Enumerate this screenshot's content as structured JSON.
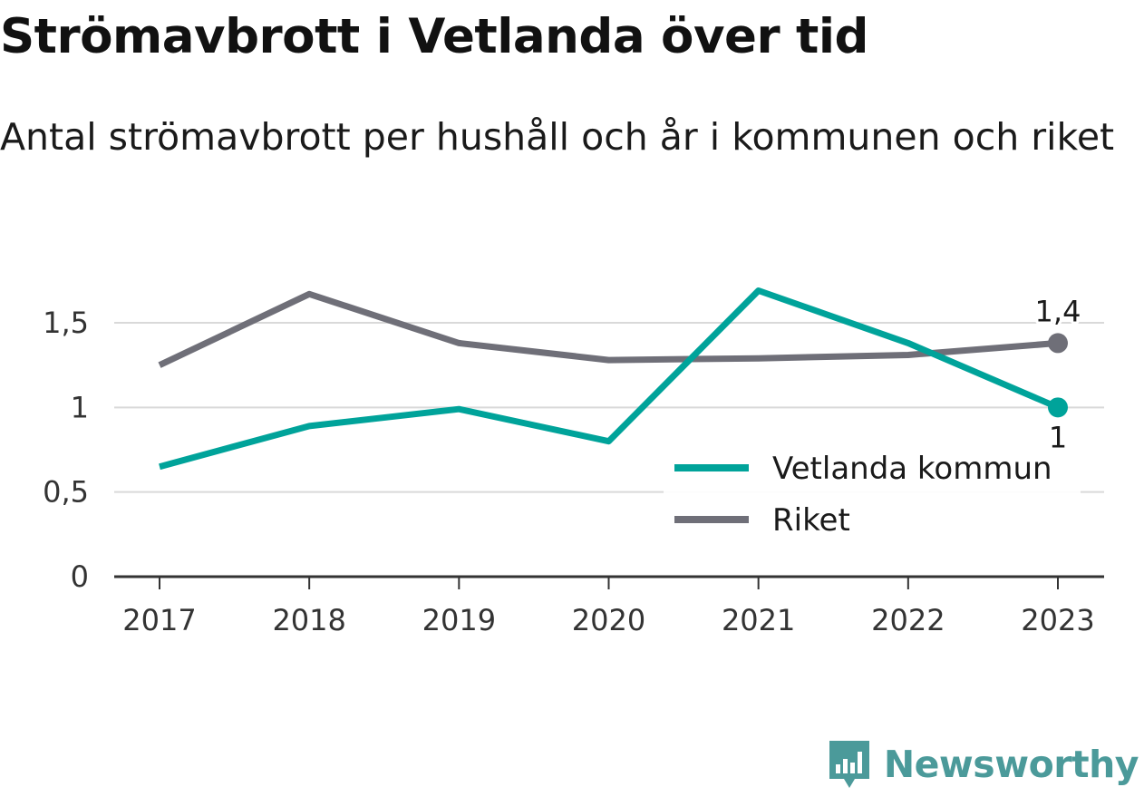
{
  "header": {
    "title": "Strömavbrott i Vetlanda över tid",
    "subtitle": "Antal strömavbrott per hushåll och år i kommunen och riket"
  },
  "brand": {
    "name": "Newsworthy",
    "icon": "bar-chart-speech-bubble-icon",
    "color": "#4b9a9a"
  },
  "chart_data": {
    "type": "line",
    "x": [
      "2017",
      "2018",
      "2019",
      "2020",
      "2021",
      "2022",
      "2023"
    ],
    "series": [
      {
        "name": "Vetlanda kommun",
        "color": "#00a39a",
        "values": [
          0.65,
          0.89,
          0.99,
          0.8,
          1.69,
          1.38,
          1.0
        ],
        "end_label": "1"
      },
      {
        "name": "Riket",
        "color": "#6f6f78",
        "values": [
          1.25,
          1.67,
          1.38,
          1.28,
          1.29,
          1.31,
          1.38
        ],
        "end_label": "1,4"
      }
    ],
    "ylim": [
      0,
      1.8
    ],
    "yticks": [
      0,
      0.5,
      1,
      1.5
    ],
    "ytick_labels": [
      "0",
      "0,5",
      "1",
      "1,5"
    ],
    "grid": true,
    "legend": "bottom-right",
    "xlabel": "",
    "ylabel": ""
  }
}
